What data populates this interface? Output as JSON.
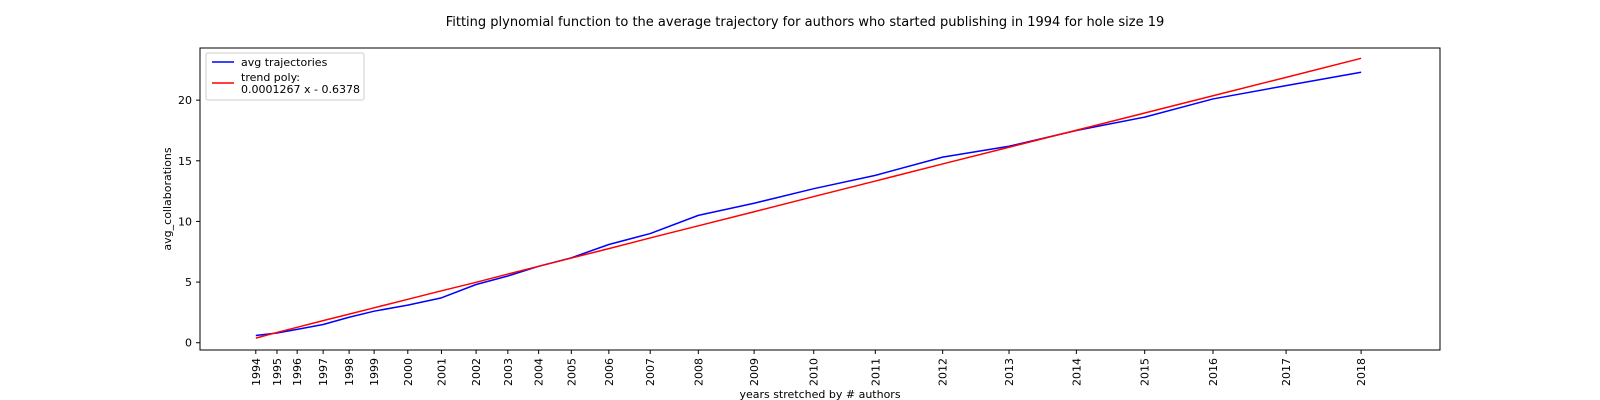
{
  "chart_data": {
    "type": "line",
    "title": "Fitting plynomial function to the average trajectory for authors who started publishing in 1994 for hole size 19",
    "xlabel": "years stretched by # authors",
    "ylabel": "avg_collaborations",
    "x_stretched": [
      0,
      1,
      2,
      3,
      4,
      5,
      6,
      7,
      8,
      9,
      10,
      11,
      12,
      13,
      14,
      15,
      16,
      17,
      18,
      19,
      20,
      21,
      22,
      23,
      24
    ],
    "tick_labels": [
      "1994",
      "1995",
      "1996",
      "1997",
      "1998",
      "1999",
      "2000",
      "2001",
      "2002",
      "2003",
      "2004",
      "2005",
      "2006",
      "2007",
      "2008",
      "2009",
      "2010",
      "2011",
      "2012",
      "2013",
      "2014",
      "2015",
      "2016",
      "2017",
      "2018"
    ],
    "tick_positions": [
      0,
      22,
      43,
      70,
      97,
      123,
      158,
      193,
      229,
      262,
      294,
      328,
      367,
      410,
      460,
      518,
      580,
      644,
      714,
      783,
      853,
      924,
      995,
      1071,
      1149
    ],
    "xlim": [
      -58,
      1231
    ],
    "ylim": [
      -0.6,
      24.3
    ],
    "yticks": [
      0,
      5,
      10,
      15,
      20
    ],
    "series": [
      {
        "name": "avg trajectories",
        "color": "#0000ff",
        "values": [
          0.6,
          0.8,
          1.1,
          1.5,
          2.1,
          2.6,
          3.1,
          3.7,
          4.8,
          5.5,
          6.3,
          7.0,
          8.1,
          9.0,
          10.5,
          11.5,
          12.7,
          13.8,
          15.3,
          16.2,
          17.5,
          18.6,
          20.1,
          21.2,
          22.3
        ]
      },
      {
        "name": "trend poly:\n0.0001267 x - 0.6378",
        "color": "#ff0000",
        "values": [
          0.38,
          0.85,
          1.27,
          1.82,
          2.36,
          2.88,
          3.58,
          4.28,
          4.98,
          5.66,
          6.3,
          6.98,
          7.76,
          8.64,
          9.64,
          10.8,
          12.05,
          13.33,
          14.74,
          16.12,
          17.52,
          18.94,
          20.36,
          21.88,
          23.45
        ]
      }
    ],
    "legend": {
      "position": "top-left",
      "entries": [
        {
          "label": "avg trajectories",
          "color": "#0000ff"
        },
        {
          "label_lines": [
            "trend poly:",
            "0.0001267 x - 0.6378"
          ],
          "color": "#ff0000"
        }
      ]
    }
  }
}
